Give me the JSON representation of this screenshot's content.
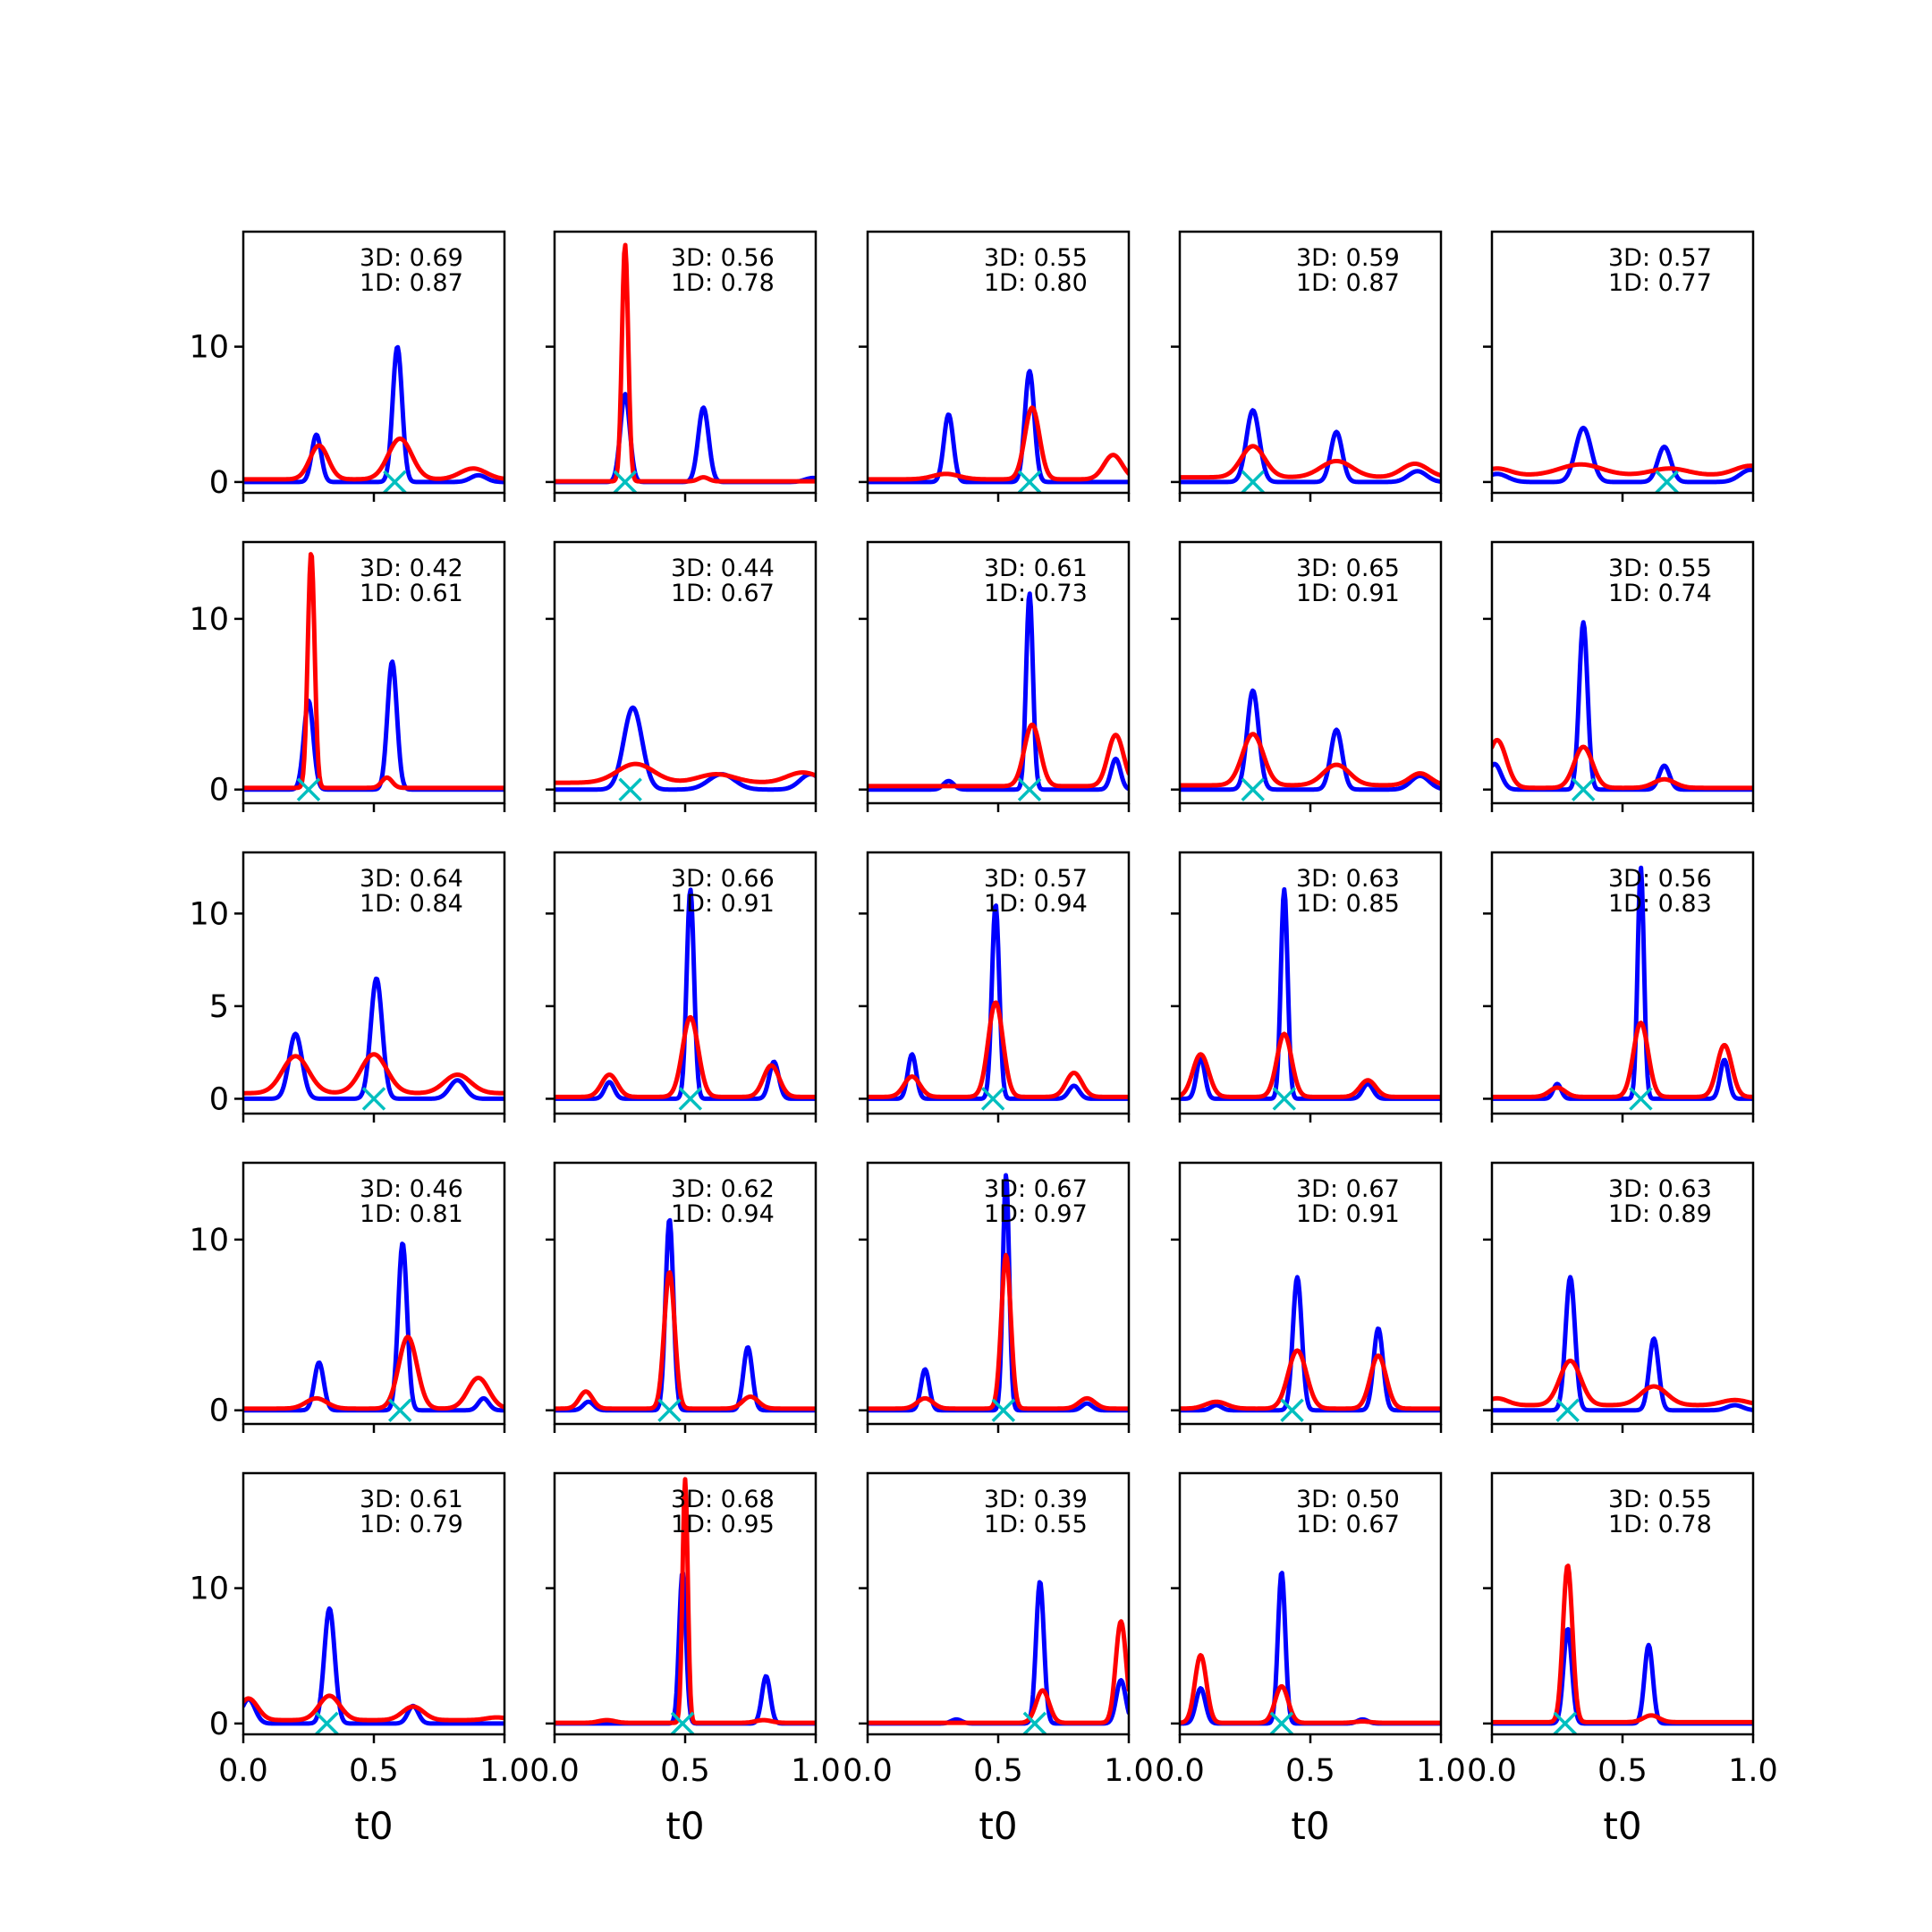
{
  "colors": {
    "blue_curve": "#0000ff",
    "red_curve": "#ff0000",
    "marker": "#00bfbf",
    "axes": "#000000"
  },
  "chart_data": {
    "type": "line",
    "layout": "5x5 grid of subplots, rows share a y-axis, columns share an x-axis",
    "xlabel": "t0",
    "xlim": [
      0,
      1
    ],
    "xticks": [
      0.0,
      0.5,
      1.0
    ],
    "xtick_labels": [
      "0.0",
      "0.5",
      "1.0"
    ],
    "grid": false,
    "legend": "none",
    "rows": [
      {
        "ylim": [
          -0.8,
          18.5
        ],
        "yticks": [
          0,
          10
        ],
        "ytick_labels": [
          "0",
          "10"
        ]
      },
      {
        "ylim": [
          -0.8,
          14.5
        ],
        "yticks": [
          0,
          10
        ],
        "ytick_labels": [
          "0",
          "10"
        ]
      },
      {
        "ylim": [
          -0.8,
          13.3
        ],
        "yticks": [
          0,
          5,
          10
        ],
        "ytick_labels": [
          "0",
          "5",
          "10"
        ]
      },
      {
        "ylim": [
          -0.8,
          14.5
        ],
        "yticks": [
          0,
          10
        ],
        "ytick_labels": [
          "0",
          "10"
        ]
      },
      {
        "ylim": [
          -0.8,
          18.5
        ],
        "yticks": [
          0,
          10
        ],
        "ytick_labels": [
          "0",
          "10"
        ]
      }
    ],
    "panels": [
      {
        "row": 0,
        "col": 0,
        "label_3d": "3D: 0.69",
        "label_1d": "1D: 0.87",
        "marker_x": 0.58,
        "blue": [
          [
            0.28,
            3.5,
            0.018
          ],
          [
            0.59,
            10,
            0.018
          ],
          [
            0.9,
            0.5,
            0.03
          ]
        ],
        "red": [
          [
            0.29,
            2.5,
            0.035
          ],
          [
            0.6,
            3,
            0.045
          ],
          [
            0.88,
            0.8,
            0.05
          ]
        ],
        "red_base": 0.2
      },
      {
        "row": 0,
        "col": 1,
        "label_3d": "3D: 0.56",
        "label_1d": "1D: 0.78",
        "marker_x": 0.27,
        "blue": [
          [
            0.27,
            6.5,
            0.018
          ],
          [
            0.57,
            5.5,
            0.02
          ],
          [
            0.99,
            0.3,
            0.03
          ]
        ],
        "red": [
          [
            0.27,
            17.5,
            0.012
          ],
          [
            0.57,
            0.3,
            0.02
          ]
        ],
        "red_base": 0.05
      },
      {
        "row": 0,
        "col": 2,
        "label_3d": "3D: 0.55",
        "label_1d": "1D: 0.80",
        "marker_x": 0.62,
        "blue": [
          [
            0.31,
            5,
            0.018
          ],
          [
            0.62,
            8.2,
            0.018
          ]
        ],
        "red": [
          [
            0.3,
            0.4,
            0.05
          ],
          [
            0.63,
            5.3,
            0.028
          ],
          [
            0.94,
            1.8,
            0.035
          ]
        ],
        "red_base": 0.2
      },
      {
        "row": 0,
        "col": 3,
        "label_3d": "3D: 0.59",
        "label_1d": "1D: 0.87",
        "marker_x": 0.28,
        "blue": [
          [
            0.28,
            5.3,
            0.025
          ],
          [
            0.6,
            3.7,
            0.022
          ],
          [
            0.91,
            0.8,
            0.035
          ]
        ],
        "red": [
          [
            0.28,
            2.3,
            0.045
          ],
          [
            0.6,
            1.2,
            0.06
          ],
          [
            0.9,
            1,
            0.05
          ]
        ],
        "red_base": 0.35
      },
      {
        "row": 0,
        "col": 4,
        "label_3d": "3D: 0.57",
        "label_1d": "1D: 0.77",
        "marker_x": 0.67,
        "blue": [
          [
            0.35,
            4,
            0.03
          ],
          [
            0.66,
            2.6,
            0.025
          ],
          [
            0.99,
            0.9,
            0.04
          ],
          [
            0.02,
            0.6,
            0.04
          ]
        ],
        "red": [
          [
            0.02,
            0.5,
            0.05
          ],
          [
            0.34,
            0.8,
            0.08
          ],
          [
            0.68,
            0.5,
            0.07
          ],
          [
            0.99,
            0.7,
            0.06
          ]
        ],
        "red_base": 0.5
      },
      {
        "row": 1,
        "col": 0,
        "label_3d": "3D: 0.42",
        "label_1d": "1D: 0.61",
        "marker_x": 0.25,
        "blue": [
          [
            0.25,
            5.2,
            0.018
          ],
          [
            0.57,
            7.5,
            0.018
          ]
        ],
        "red": [
          [
            0.26,
            13.8,
            0.013
          ],
          [
            0.55,
            0.6,
            0.02
          ]
        ],
        "red_base": 0.1
      },
      {
        "row": 1,
        "col": 1,
        "label_3d": "3D: 0.44",
        "label_1d": "1D: 0.67",
        "marker_x": 0.29,
        "blue": [
          [
            0.3,
            4.8,
            0.035
          ],
          [
            0.64,
            0.9,
            0.05
          ],
          [
            0.98,
            0.9,
            0.04
          ]
        ],
        "red": [
          [
            0.31,
            1.1,
            0.07
          ],
          [
            0.62,
            0.5,
            0.07
          ],
          [
            0.95,
            0.6,
            0.06
          ]
        ],
        "red_base": 0.4
      },
      {
        "row": 1,
        "col": 2,
        "label_3d": "3D: 0.61",
        "label_1d": "1D: 0.73",
        "marker_x": 0.62,
        "blue": [
          [
            0.31,
            0.5,
            0.02
          ],
          [
            0.62,
            11.5,
            0.013
          ],
          [
            0.95,
            1.8,
            0.018
          ]
        ],
        "red": [
          [
            0.63,
            3.6,
            0.03
          ],
          [
            0.95,
            3.0,
            0.03
          ]
        ],
        "red_base": 0.2
      },
      {
        "row": 1,
        "col": 3,
        "label_3d": "3D: 0.65",
        "label_1d": "1D: 0.91",
        "marker_x": 0.28,
        "blue": [
          [
            0.28,
            5.8,
            0.022
          ],
          [
            0.6,
            3.5,
            0.022
          ],
          [
            0.92,
            0.8,
            0.035
          ]
        ],
        "red": [
          [
            0.28,
            3,
            0.04
          ],
          [
            0.6,
            1.2,
            0.05
          ],
          [
            0.92,
            0.7,
            0.04
          ]
        ],
        "red_base": 0.25
      },
      {
        "row": 1,
        "col": 4,
        "label_3d": "3D: 0.55",
        "label_1d": "1D: 0.74",
        "marker_x": 0.35,
        "blue": [
          [
            0.35,
            9.8,
            0.016
          ],
          [
            0.66,
            1.4,
            0.02
          ],
          [
            0.01,
            1.5,
            0.025
          ]
        ],
        "red": [
          [
            0.02,
            2.8,
            0.035
          ],
          [
            0.35,
            2.4,
            0.035
          ],
          [
            0.66,
            0.5,
            0.04
          ]
        ],
        "red_base": 0.1
      },
      {
        "row": 2,
        "col": 0,
        "label_3d": "3D: 0.64",
        "label_1d": "1D: 0.84",
        "marker_x": 0.5,
        "blue": [
          [
            0.2,
            3.5,
            0.025
          ],
          [
            0.51,
            6.5,
            0.022
          ],
          [
            0.82,
            1,
            0.03
          ]
        ],
        "red": [
          [
            0.2,
            2,
            0.05
          ],
          [
            0.5,
            2.1,
            0.05
          ],
          [
            0.82,
            1,
            0.05
          ]
        ],
        "red_base": 0.3
      },
      {
        "row": 2,
        "col": 1,
        "label_3d": "3D: 0.66",
        "label_1d": "1D: 0.91",
        "marker_x": 0.52,
        "blue": [
          [
            0.21,
            0.9,
            0.018
          ],
          [
            0.52,
            11.3,
            0.014
          ],
          [
            0.84,
            2,
            0.018
          ]
        ],
        "red": [
          [
            0.21,
            1.2,
            0.03
          ],
          [
            0.52,
            4.3,
            0.03
          ],
          [
            0.83,
            1.7,
            0.03
          ]
        ],
        "red_base": 0.1
      },
      {
        "row": 2,
        "col": 2,
        "label_3d": "3D: 0.57",
        "label_1d": "1D: 0.94",
        "marker_x": 0.48,
        "blue": [
          [
            0.17,
            2.4,
            0.016
          ],
          [
            0.49,
            10.5,
            0.014
          ],
          [
            0.79,
            0.7,
            0.02
          ]
        ],
        "red": [
          [
            0.17,
            1.1,
            0.03
          ],
          [
            0.49,
            5.1,
            0.028
          ],
          [
            0.79,
            1.3,
            0.03
          ]
        ],
        "red_base": 0.1
      },
      {
        "row": 2,
        "col": 3,
        "label_3d": "3D: 0.63",
        "label_1d": "1D: 0.85",
        "marker_x": 0.4,
        "blue": [
          [
            0.08,
            2.2,
            0.016
          ],
          [
            0.4,
            11.3,
            0.013
          ],
          [
            0.72,
            0.8,
            0.02
          ]
        ],
        "red": [
          [
            0.08,
            2.3,
            0.03
          ],
          [
            0.4,
            3.4,
            0.028
          ],
          [
            0.72,
            0.9,
            0.03
          ]
        ],
        "red_base": 0.1
      },
      {
        "row": 2,
        "col": 4,
        "label_3d": "3D: 0.56",
        "label_1d": "1D: 0.83",
        "marker_x": 0.57,
        "blue": [
          [
            0.25,
            0.8,
            0.015
          ],
          [
            0.57,
            12.5,
            0.012
          ],
          [
            0.89,
            2.1,
            0.016
          ]
        ],
        "red": [
          [
            0.25,
            0.5,
            0.03
          ],
          [
            0.57,
            4,
            0.028
          ],
          [
            0.89,
            2.8,
            0.028
          ]
        ],
        "red_base": 0.1
      },
      {
        "row": 3,
        "col": 0,
        "label_3d": "3D: 0.46",
        "label_1d": "1D: 0.81",
        "marker_x": 0.6,
        "blue": [
          [
            0.29,
            2.8,
            0.018
          ],
          [
            0.61,
            9.8,
            0.017
          ],
          [
            0.92,
            0.7,
            0.02
          ]
        ],
        "red": [
          [
            0.28,
            0.6,
            0.04
          ],
          [
            0.63,
            4.2,
            0.035
          ],
          [
            0.9,
            1.8,
            0.04
          ]
        ],
        "red_base": 0.1
      },
      {
        "row": 3,
        "col": 1,
        "label_3d": "3D: 0.62",
        "label_1d": "1D: 0.94",
        "marker_x": 0.44,
        "blue": [
          [
            0.13,
            0.5,
            0.02
          ],
          [
            0.44,
            11.2,
            0.015
          ],
          [
            0.74,
            3.7,
            0.017
          ]
        ],
        "red": [
          [
            0.12,
            1,
            0.025
          ],
          [
            0.44,
            8,
            0.02
          ],
          [
            0.75,
            0.7,
            0.03
          ]
        ],
        "red_base": 0.1
      },
      {
        "row": 3,
        "col": 2,
        "label_3d": "3D: 0.67",
        "label_1d": "1D: 0.97",
        "marker_x": 0.52,
        "blue": [
          [
            0.22,
            2.4,
            0.016
          ],
          [
            0.53,
            13.8,
            0.012
          ],
          [
            0.84,
            0.4,
            0.02
          ]
        ],
        "red": [
          [
            0.22,
            0.6,
            0.03
          ],
          [
            0.53,
            9,
            0.018
          ],
          [
            0.84,
            0.6,
            0.03
          ]
        ],
        "red_base": 0.1
      },
      {
        "row": 3,
        "col": 3,
        "label_3d": "3D: 0.67",
        "label_1d": "1D: 0.91",
        "marker_x": 0.43,
        "blue": [
          [
            0.14,
            0.3,
            0.02
          ],
          [
            0.45,
            7.8,
            0.017
          ],
          [
            0.76,
            4.8,
            0.018
          ]
        ],
        "red": [
          [
            0.14,
            0.4,
            0.04
          ],
          [
            0.45,
            3.4,
            0.035
          ],
          [
            0.76,
            3.1,
            0.03
          ]
        ],
        "red_base": 0.1
      },
      {
        "row": 3,
        "col": 4,
        "label_3d": "3D: 0.63",
        "label_1d": "1D: 0.89",
        "marker_x": 0.29,
        "blue": [
          [
            0.3,
            7.8,
            0.018
          ],
          [
            0.62,
            4.2,
            0.018
          ],
          [
            0.93,
            0.3,
            0.03
          ]
        ],
        "red": [
          [
            0.3,
            2.6,
            0.04
          ],
          [
            0.62,
            1.1,
            0.05
          ],
          [
            0.93,
            0.3,
            0.05
          ],
          [
            0.02,
            0.4,
            0.04
          ]
        ],
        "red_base": 0.3
      },
      {
        "row": 4,
        "col": 0,
        "label_3d": "3D: 0.61",
        "label_1d": "1D: 0.79",
        "marker_x": 0.32,
        "blue": [
          [
            0.33,
            8.5,
            0.02
          ],
          [
            0.65,
            1.3,
            0.02
          ],
          [
            0.02,
            1.8,
            0.025
          ]
        ],
        "red": [
          [
            0.02,
            1.6,
            0.035
          ],
          [
            0.33,
            1.8,
            0.04
          ],
          [
            0.65,
            1,
            0.04
          ],
          [
            0.97,
            0.2,
            0.04
          ]
        ],
        "red_base": 0.25
      },
      {
        "row": 4,
        "col": 1,
        "label_3d": "3D: 0.68",
        "label_1d": "1D: 0.95",
        "marker_x": 0.49,
        "blue": [
          [
            0.49,
            11.2,
            0.013
          ],
          [
            0.81,
            3.5,
            0.016
          ]
        ],
        "red": [
          [
            0.5,
            18,
            0.01
          ],
          [
            0.2,
            0.2,
            0.03
          ],
          [
            0.8,
            0.2,
            0.03
          ]
        ],
        "red_base": 0.05
      },
      {
        "row": 4,
        "col": 2,
        "label_3d": "3D: 0.39",
        "label_1d": "1D: 0.55",
        "marker_x": 0.64,
        "blue": [
          [
            0.34,
            0.3,
            0.02
          ],
          [
            0.66,
            10.5,
            0.015
          ],
          [
            0.97,
            3.2,
            0.018
          ]
        ],
        "red": [
          [
            0.67,
            2.4,
            0.025
          ],
          [
            0.97,
            7.5,
            0.02
          ]
        ],
        "red_base": 0.05
      },
      {
        "row": 4,
        "col": 3,
        "label_3d": "3D: 0.50",
        "label_1d": "1D: 0.67",
        "marker_x": 0.39,
        "blue": [
          [
            0.08,
            2.6,
            0.018
          ],
          [
            0.39,
            11.2,
            0.014
          ],
          [
            0.7,
            0.3,
            0.02
          ]
        ],
        "red": [
          [
            0.08,
            5,
            0.022
          ],
          [
            0.39,
            2.7,
            0.025
          ],
          [
            0.7,
            0.1,
            0.03
          ]
        ],
        "red_base": 0.05
      },
      {
        "row": 4,
        "col": 4,
        "label_3d": "3D: 0.55",
        "label_1d": "1D: 0.78",
        "marker_x": 0.28,
        "blue": [
          [
            0.29,
            7,
            0.016
          ],
          [
            0.6,
            5.8,
            0.016
          ]
        ],
        "red": [
          [
            0.29,
            11.6,
            0.018
          ],
          [
            0.61,
            0.5,
            0.03
          ]
        ],
        "red_base": 0.1
      }
    ]
  }
}
